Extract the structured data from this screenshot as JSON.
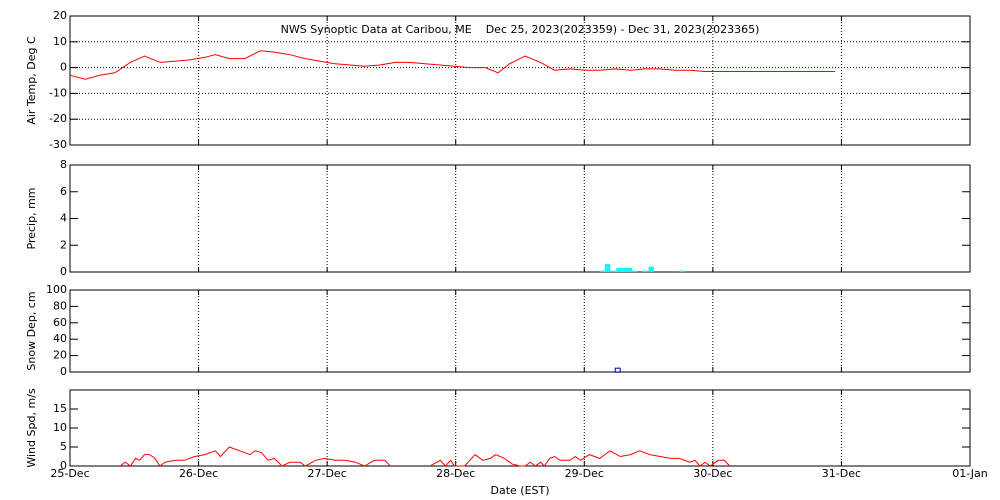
{
  "chart_data": [
    {
      "type": "line",
      "title": "NWS Synoptic Data at Caribou, ME    Dec 25, 2023(2023359) - Dec 31, 2023(2023365)",
      "ylabel": "Air Temp, Deg C",
      "color": "#ff0000",
      "grid": "both",
      "xlim": [
        0,
        7
      ],
      "xticks": [
        0,
        1,
        2,
        3,
        4,
        5,
        6,
        7
      ],
      "ylim": [
        -30,
        20
      ],
      "yticks": [
        -30,
        -20,
        -10,
        0,
        10,
        20
      ],
      "x": [
        0,
        0.12,
        0.23,
        0.35,
        0.47,
        0.58,
        0.7,
        0.82,
        0.93,
        1.05,
        1.13,
        1.24,
        1.36,
        1.48,
        1.59,
        1.71,
        1.83,
        1.94,
        2.06,
        2.18,
        2.29,
        2.41,
        2.53,
        2.64,
        2.76,
        2.88,
        2.99,
        3.11,
        3.23,
        3.33,
        3.42,
        3.54,
        3.66,
        3.77,
        3.89,
        4.01,
        4.12,
        4.24,
        4.36,
        4.47,
        4.59,
        4.71,
        4.82,
        4.94,
        5.95
      ],
      "values": [
        -3,
        -4.5,
        -3,
        -2,
        2,
        4.5,
        2,
        2.5,
        3,
        4,
        5,
        3.5,
        3.5,
        6.5,
        6,
        5,
        3.5,
        2.5,
        1.5,
        1,
        0.5,
        1,
        2,
        2,
        1.5,
        1,
        0.5,
        0,
        0,
        -2,
        1.5,
        4.5,
        2,
        -1,
        -0.5,
        -1,
        -1,
        -0.5,
        -1,
        -0.5,
        -0.5,
        -1,
        -1,
        -1.5,
        -1.5
      ]
    },
    {
      "type": "bar",
      "ylabel": "Precip, mm",
      "color": "#00ffff",
      "grid": "x",
      "xlim": [
        0,
        7
      ],
      "xticks": [
        0,
        1,
        2,
        3,
        4,
        5,
        6,
        7
      ],
      "ylim": [
        0,
        8
      ],
      "yticks": [
        0,
        2,
        4,
        6,
        8
      ],
      "x": [
        4.12,
        4.16,
        4.21,
        4.25,
        4.29,
        4.33,
        4.37,
        4.45,
        4.5,
        4.74
      ],
      "values": [
        0.1,
        0.6,
        0.1,
        0.3,
        0.3,
        0.3,
        0.1,
        0.1,
        0.4,
        0.1
      ]
    },
    {
      "type": "scatter",
      "ylabel": "Snow Dep, cm",
      "color": "#0000aa",
      "grid": "x",
      "xlim": [
        0,
        7
      ],
      "xticks": [
        0,
        1,
        2,
        3,
        4,
        5,
        6,
        7
      ],
      "ylim": [
        0,
        100
      ],
      "yticks": [
        0,
        20,
        40,
        60,
        80,
        100
      ],
      "x": [
        4.26
      ],
      "values": [
        1
      ]
    },
    {
      "type": "line",
      "ylabel": "Wind Spd, m/s",
      "xlabel": "Date (EST)",
      "color": "#ff0000",
      "grid": "x",
      "xlim": [
        0,
        7
      ],
      "xticks": [
        {
          "value": 0,
          "label": "25-Dec"
        },
        {
          "value": 1,
          "label": "26-Dec"
        },
        {
          "value": 2,
          "label": "27-Dec"
        },
        {
          "value": 3,
          "label": "28-Dec"
        },
        {
          "value": 4,
          "label": "29-Dec"
        },
        {
          "value": 5,
          "label": "30-Dec"
        },
        {
          "value": 6,
          "label": "31-Dec"
        },
        {
          "value": 7,
          "label": "01-Jan"
        }
      ],
      "ylim": [
        0,
        20
      ],
      "yticks": [
        0,
        5,
        10,
        15
      ],
      "x": [
        0.39,
        0.43,
        0.47,
        0.51,
        0.54,
        0.58,
        0.62,
        0.66,
        0.7,
        0.74,
        0.82,
        0.89,
        0.97,
        1.05,
        1.13,
        1.17,
        1.24,
        1.32,
        1.4,
        1.44,
        1.49,
        1.54,
        1.59,
        1.65,
        1.71,
        1.79,
        1.83,
        1.91,
        1.98,
        2.06,
        2.14,
        2.22,
        2.29,
        2.37,
        2.45,
        2.49,
        2.6,
        2.8,
        2.88,
        2.92,
        2.96,
        2.99,
        3.07,
        3.15,
        3.21,
        3.27,
        3.31,
        3.38,
        3.44,
        3.5,
        3.54,
        3.58,
        3.62,
        3.66,
        3.69,
        3.73,
        3.77,
        3.81,
        3.89,
        3.93,
        3.97,
        4.04,
        4.12,
        4.2,
        4.28,
        4.36,
        4.43,
        4.51,
        4.59,
        4.67,
        4.74,
        4.82,
        4.86,
        4.9,
        4.94,
        4.98,
        5.04,
        5.09,
        5.13
      ],
      "values": [
        0,
        1,
        0,
        2,
        1.5,
        3,
        3,
        2,
        0,
        1,
        1.5,
        1.5,
        2.5,
        3,
        4,
        2.5,
        5,
        4,
        3,
        4,
        3.5,
        1.5,
        2,
        0,
        1,
        1,
        0,
        1.5,
        2,
        1.5,
        1.5,
        1,
        0,
        1.5,
        1.5,
        0,
        null,
        0,
        1.5,
        0,
        1.5,
        0,
        0,
        3,
        1.5,
        2,
        3,
        2,
        0.5,
        0,
        0,
        1,
        0,
        1,
        0,
        2,
        2.5,
        1.5,
        1.5,
        2.5,
        1.5,
        3,
        2,
        4,
        2.5,
        3,
        4,
        3,
        2.5,
        2,
        2,
        1,
        1.5,
        0,
        1,
        0,
        1.5,
        1.5,
        0
      ]
    }
  ]
}
